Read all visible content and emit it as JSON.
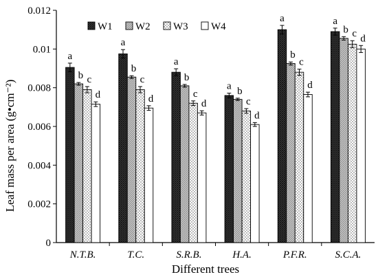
{
  "chart_data": {
    "type": "bar",
    "title": "",
    "xlabel": "Different trees",
    "ylabel": "Leaf mass per area (g•cm⁻²)",
    "ylim": [
      0,
      0.012
    ],
    "yticks": [
      0,
      0.002,
      0.004,
      0.006,
      0.008,
      0.01,
      0.012
    ],
    "ytick_labels": [
      "0",
      "0.002",
      "0.004",
      "0.006",
      "0.008",
      "0.01",
      "0.012"
    ],
    "grid": false,
    "legend_position": "top-left",
    "categories": [
      "N.T.B.",
      "T.C.",
      "S.R.B.",
      "H.A.",
      "P.F.R.",
      "S.C.A."
    ],
    "series": [
      {
        "name": "W1",
        "pattern": "dense-crosshatch",
        "color": "#333333",
        "values": [
          0.00905,
          0.00975,
          0.0088,
          0.0076,
          0.011,
          0.0109
        ],
        "errors": [
          0.00022,
          0.00022,
          0.00018,
          0.00012,
          0.00022,
          0.00018
        ],
        "labels": [
          "a",
          "a",
          "a",
          "a",
          "a",
          "a"
        ]
      },
      {
        "name": "W2",
        "pattern": "grey-hatch",
        "color": "#aaaaaa",
        "values": [
          0.0082,
          0.00855,
          0.0081,
          0.0074,
          0.00925,
          0.01055
        ],
        "errors": [
          7e-05,
          7e-05,
          7e-05,
          6e-05,
          8e-05,
          9e-05
        ],
        "labels": [
          "b",
          "b",
          "b",
          "b",
          "b",
          "b"
        ]
      },
      {
        "name": "W3",
        "pattern": "dots",
        "color": "#888888",
        "values": [
          0.0079,
          0.0079,
          0.0072,
          0.0068,
          0.0088,
          0.01025
        ],
        "errors": [
          0.00016,
          0.00016,
          0.00012,
          0.00012,
          0.00016,
          0.00018
        ],
        "labels": [
          "c",
          "c",
          "c",
          "c",
          "c",
          "c"
        ]
      },
      {
        "name": "W4",
        "pattern": "white",
        "color": "#ffffff",
        "values": [
          0.00715,
          0.00695,
          0.0067,
          0.0061,
          0.00765,
          0.01
        ],
        "errors": [
          0.00012,
          0.00012,
          0.00011,
          0.0001,
          0.00012,
          0.00018
        ],
        "labels": [
          "d",
          "d",
          "d",
          "d",
          "d",
          "d"
        ]
      }
    ]
  }
}
